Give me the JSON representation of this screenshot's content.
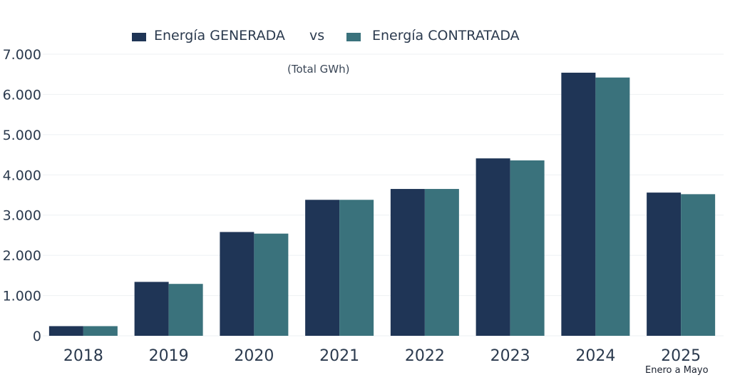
{
  "chart_data": {
    "type": "bar",
    "title": "",
    "subtitle": "(Total GWh)",
    "legend_connector": "vs",
    "categories": [
      "2018",
      "2019",
      "2020",
      "2021",
      "2022",
      "2023",
      "2024",
      "2025"
    ],
    "series": [
      {
        "name": "Energía GENERADA",
        "color": "#1f3556",
        "values": [
          240,
          1340,
          2580,
          3380,
          3650,
          4410,
          6540,
          3560
        ]
      },
      {
        "name": "Energía CONTRATADA",
        "color": "#3a727c",
        "values": [
          240,
          1290,
          2540,
          3380,
          3650,
          4360,
          6420,
          3520
        ]
      }
    ],
    "ylim": [
      0,
      7000
    ],
    "yticks": [
      0,
      1000,
      2000,
      3000,
      4000,
      5000,
      6000,
      7000
    ],
    "ytick_labels": [
      "0",
      "1.000",
      "2.000",
      "3.000",
      "4.000",
      "5.000",
      "6.000",
      "7.000"
    ],
    "xlabel": "",
    "ylabel": "",
    "grid": true,
    "legend_position": "top",
    "annotation": "Enero a Mayo"
  }
}
